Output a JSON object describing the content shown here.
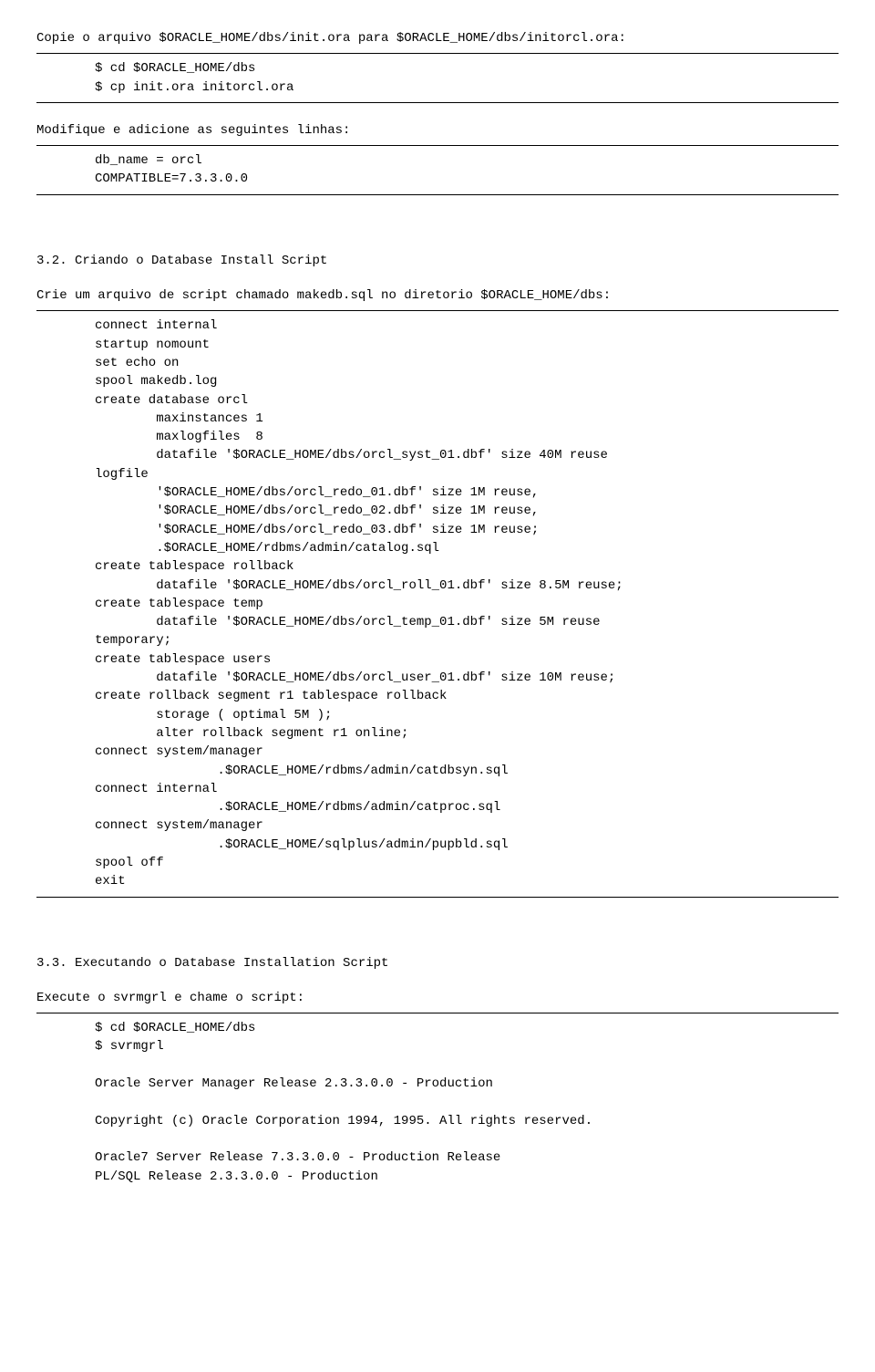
{
  "intro_line": "Copie o arquivo $ORACLE_HOME/dbs/init.ora para $ORACLE_HOME/dbs/initorcl.ora:",
  "block1": [
    "$ cd $ORACLE_HOME/dbs",
    "$ cp init.ora initorcl.ora"
  ],
  "modify_line": "Modifique e adicione as seguintes linhas:",
  "block2": [
    "db_name = orcl",
    "COMPATIBLE=7.3.3.0.0"
  ],
  "sec32_title": "3.2.  Criando o Database Install Script",
  "sec32_line": "Crie um arquivo de script chamado makedb.sql no diretorio $ORACLE_HOME/dbs:",
  "block3": "connect internal\nstartup nomount\nset echo on\nspool makedb.log\ncreate database orcl\n        maxinstances 1\n        maxlogfiles  8\n        datafile '$ORACLE_HOME/dbs/orcl_syst_01.dbf' size 40M reuse\nlogfile\n        '$ORACLE_HOME/dbs/orcl_redo_01.dbf' size 1M reuse,\n        '$ORACLE_HOME/dbs/orcl_redo_02.dbf' size 1M reuse,\n        '$ORACLE_HOME/dbs/orcl_redo_03.dbf' size 1M reuse;\n        .$ORACLE_HOME/rdbms/admin/catalog.sql\ncreate tablespace rollback\n        datafile '$ORACLE_HOME/dbs/orcl_roll_01.dbf' size 8.5M reuse;\ncreate tablespace temp\n        datafile '$ORACLE_HOME/dbs/orcl_temp_01.dbf' size 5M reuse\ntemporary;\ncreate tablespace users\n        datafile '$ORACLE_HOME/dbs/orcl_user_01.dbf' size 10M reuse;\ncreate rollback segment r1 tablespace rollback\n        storage ( optimal 5M );\n        alter rollback segment r1 online;\nconnect system/manager\n                .$ORACLE_HOME/rdbms/admin/catdbsyn.sql\nconnect internal\n                .$ORACLE_HOME/rdbms/admin/catproc.sql\nconnect system/manager\n                .$ORACLE_HOME/sqlplus/admin/pupbld.sql\nspool off\nexit",
  "sec33_title": "3.3.  Executando o Database Installation Script",
  "sec33_line": "Execute o svrmgrl e chame o script:",
  "block4": "$ cd $ORACLE_HOME/dbs\n$ svrmgrl\n\nOracle Server Manager Release 2.3.3.0.0 - Production\n\nCopyright (c) Oracle Corporation 1994, 1995. All rights reserved.\n\nOracle7 Server Release 7.3.3.0.0 - Production Release\nPL/SQL Release 2.3.3.0.0 - Production"
}
